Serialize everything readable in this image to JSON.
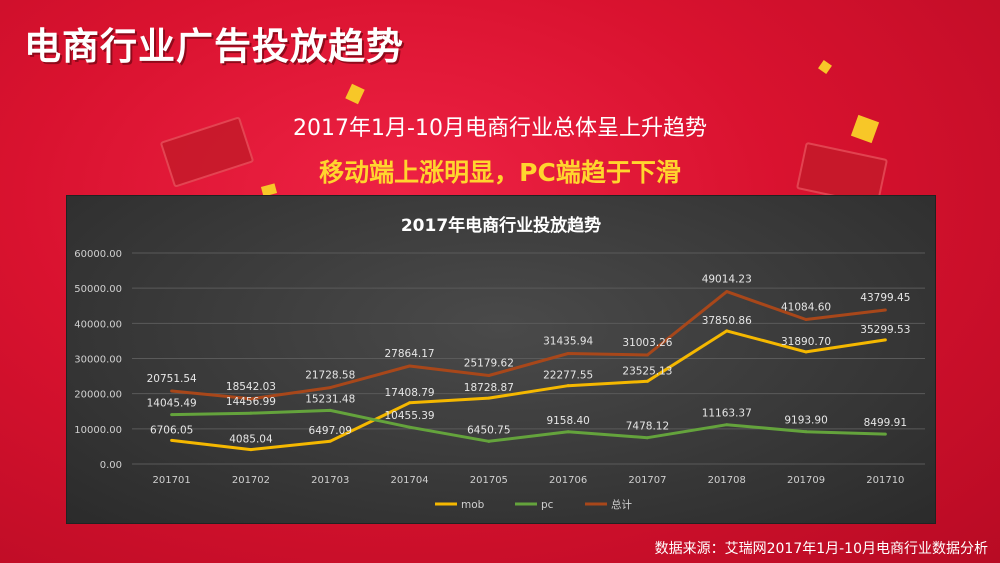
{
  "header": {
    "title": "电商行业广告投放趋势",
    "subtitle": "2017年1月-10月电商行业总体呈上升趋势",
    "highlight": "移动端上涨明显，PC端趋于下滑"
  },
  "footer": {
    "source": "数据来源：艾瑞网2017年1月-10月电商行业数据分析"
  },
  "colors": {
    "mob": "#f5b800",
    "pc": "#64a33c",
    "total": "#a8471a"
  },
  "chart_data": {
    "type": "line",
    "title": "2017年电商行业投放趋势",
    "categories": [
      "201701",
      "201702",
      "201703",
      "201704",
      "201705",
      "201706",
      "201707",
      "201708",
      "201709",
      "201710"
    ],
    "ylim": [
      0,
      60000
    ],
    "yticks": [
      "0.00",
      "10000.00",
      "20000.00",
      "30000.00",
      "40000.00",
      "50000.00",
      "60000.00"
    ],
    "grid": true,
    "legend": "bottom",
    "series": [
      {
        "name": "mob",
        "values": [
          6706.05,
          4085.04,
          6497.09,
          17408.79,
          18728.87,
          22277.55,
          23525.13,
          37850.86,
          31890.7,
          35299.53
        ],
        "labels": [
          "6706.05",
          "4085.04",
          "6497.09",
          "17408.79",
          "18728.87",
          "22277.55",
          "23525.13",
          "37850.86",
          "31890.70",
          "35299.53"
        ]
      },
      {
        "name": "pc",
        "values": [
          14045.49,
          14456.99,
          15231.48,
          10455.39,
          6450.75,
          9158.4,
          7478.12,
          11163.37,
          9193.9,
          8499.91
        ],
        "labels": [
          "14045.49",
          "14456.99",
          "15231.48",
          "10455.39",
          "6450.75",
          "9158.40",
          "7478.12",
          "11163.37",
          "9193.90",
          "8499.91"
        ]
      },
      {
        "name": "总计",
        "values": [
          20751.54,
          18542.03,
          21728.58,
          27864.17,
          25179.62,
          31435.94,
          31003.26,
          49014.23,
          41084.6,
          43799.45
        ],
        "labels": [
          "20751.54",
          "18542.03",
          "21728.58",
          "27864.17",
          "25179.62",
          "31435.94",
          "31003.26",
          "49014.23",
          "41084.60",
          "43799.45"
        ]
      }
    ]
  }
}
